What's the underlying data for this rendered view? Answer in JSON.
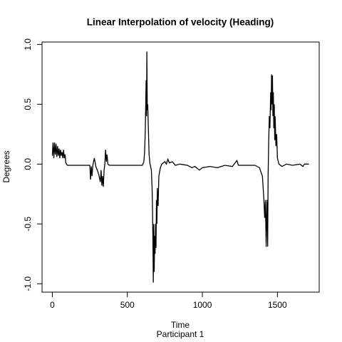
{
  "chart_data": {
    "type": "line",
    "title": "Linear Interpolation of velocity (Heading)",
    "x_label": "Time",
    "subtitle": "Participant  1",
    "y_label": "Degrees",
    "xlim": [
      -68.4,
      1778.4
    ],
    "ylim": [
      -1.07,
      1.02
    ],
    "xticks": [
      0,
      500,
      1000,
      1500
    ],
    "yticks": [
      {
        "value": -1,
        "label": "-1.0"
      },
      -0.5,
      {
        "value": 0,
        "label": "0.0"
      },
      0.5,
      {
        "value": 1,
        "label": "1.0"
      }
    ],
    "grid": false,
    "series": [
      {
        "color": "#000000",
        "x": [
          0,
          5,
          10,
          15,
          20,
          25,
          30,
          35,
          40,
          45,
          50,
          55,
          60,
          65,
          70,
          75,
          80,
          85,
          90,
          100,
          150,
          200,
          250,
          255,
          260,
          265,
          270,
          280,
          290,
          300,
          310,
          320,
          325,
          330,
          335,
          340,
          345,
          350,
          355,
          360,
          365,
          370,
          380,
          450,
          500,
          550,
          600,
          610,
          615,
          620,
          625,
          628,
          630,
          633,
          636,
          640,
          645,
          650,
          660,
          665,
          668,
          670,
          673,
          676,
          679,
          682,
          685,
          688,
          691,
          694,
          697,
          700,
          705,
          710,
          720,
          730,
          750,
          760,
          770,
          780,
          800,
          820,
          850,
          900,
          930,
          950,
          980,
          1000,
          1050,
          1100,
          1150,
          1200,
          1230,
          1240,
          1300,
          1350,
          1380,
          1400,
          1410,
          1415,
          1420,
          1425,
          1430,
          1435,
          1438,
          1442,
          1446,
          1450,
          1455,
          1458,
          1461,
          1464,
          1467,
          1470,
          1473,
          1476,
          1479,
          1482,
          1485,
          1490,
          1495,
          1500,
          1510,
          1530,
          1560,
          1600,
          1650,
          1670,
          1680,
          1700,
          1710
        ],
        "values": [
          0.07,
          0.18,
          0.05,
          0.18,
          0.08,
          0.17,
          0.06,
          0.15,
          0.07,
          0.13,
          0.05,
          0.12,
          0.07,
          0.1,
          0.05,
          0.12,
          0.05,
          0.08,
          0.01,
          -0.01,
          -0.01,
          -0.01,
          -0.01,
          -0.13,
          -0.02,
          -0.1,
          -0.01,
          0.05,
          -0.02,
          -0.05,
          -0.09,
          -0.15,
          -0.05,
          -0.18,
          -0.1,
          -0.19,
          -0.05,
          0.0,
          0.12,
          0.02,
          0.08,
          0.0,
          -0.01,
          -0.01,
          -0.01,
          -0.01,
          -0.01,
          0.02,
          0.1,
          0.3,
          0.7,
          0.4,
          0.94,
          0.45,
          0.5,
          0.3,
          0.08,
          0.01,
          -0.05,
          -0.2,
          -0.4,
          -0.6,
          -0.99,
          -0.5,
          -0.9,
          -0.6,
          -0.75,
          -0.5,
          -0.7,
          -0.3,
          -0.5,
          -0.2,
          -0.35,
          -0.1,
          -0.03,
          0.0,
          0.02,
          0.0,
          0.04,
          0.01,
          0.02,
          -0.01,
          0.0,
          -0.01,
          -0.03,
          -0.02,
          -0.05,
          -0.03,
          -0.02,
          -0.03,
          -0.01,
          -0.02,
          0.03,
          -0.01,
          -0.01,
          -0.01,
          -0.03,
          -0.1,
          -0.3,
          -0.45,
          -0.3,
          -0.69,
          -0.3,
          -0.69,
          -0.1,
          0.2,
          0.4,
          0.3,
          0.6,
          0.45,
          0.75,
          0.5,
          0.74,
          0.4,
          0.6,
          0.3,
          0.5,
          0.2,
          0.4,
          0.15,
          0.25,
          0.05,
          0.0,
          -0.02,
          0.0,
          -0.01,
          0.0,
          -0.02,
          0.0,
          0.0,
          0.0
        ]
      }
    ]
  }
}
